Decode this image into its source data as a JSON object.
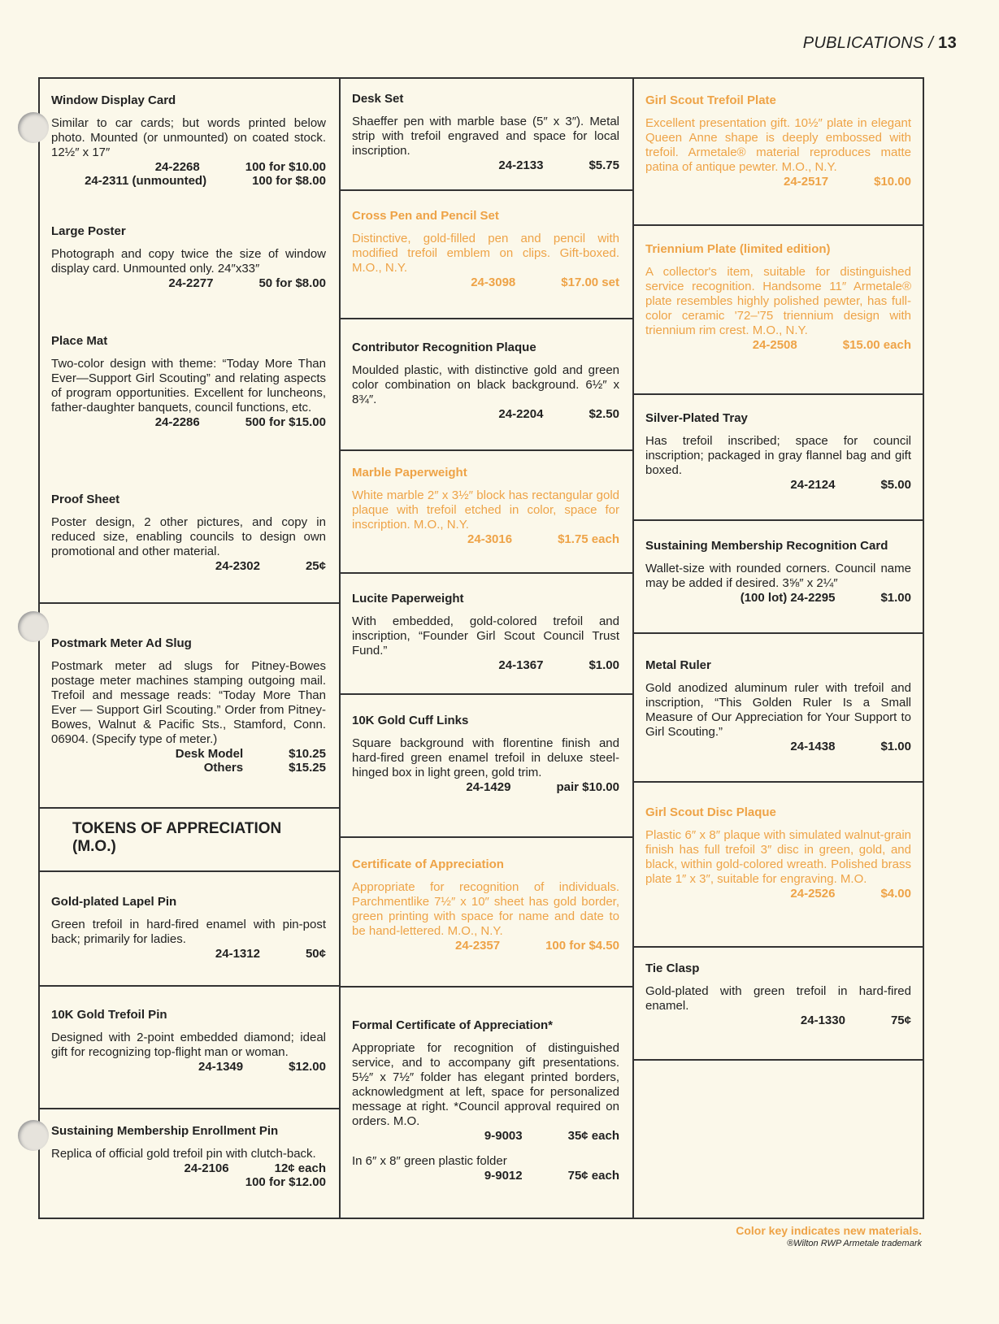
{
  "header": {
    "section": "PUBLICATIONS /",
    "page": "13"
  },
  "colors": {
    "new_material": "#eea347",
    "text": "#222222",
    "paper": "#fbf8ea"
  },
  "columns": [
    {
      "cells": [
        {
          "items": [
            {
              "title": "Window Display Card",
              "desc": "Similar to car cards; but words printed below photo. Mounted (or unmounted) on coated stock. 12½″ x 17″",
              "prices": [
                {
                  "code": "24-2268",
                  "price": "100 for $10.00"
                },
                {
                  "code": "24-2311 (unmounted)",
                  "price": "100 for $8.00"
                }
              ]
            },
            {
              "title": "Large Poster",
              "desc": "Photograph and copy twice the size of window display card. Unmounted only. 24″x33″",
              "prices": [
                {
                  "code": "24-2277",
                  "price": "50 for $8.00"
                }
              ]
            },
            {
              "title": "Place Mat",
              "desc": "Two-color design with theme: “Today More Than Ever—Support Girl Scouting” and relating aspects of program opportunities. Excellent for luncheons, father-daughter banquets, council functions, etc.",
              "prices": [
                {
                  "code": "24-2286",
                  "price": "500 for $15.00"
                }
              ]
            },
            {
              "title": "Proof Sheet",
              "desc": "Poster design, 2 other pictures, and copy in reduced size, enabling councils to design own promotional and other material.",
              "prices": [
                {
                  "code": "24-2302",
                  "price": "25¢"
                }
              ]
            }
          ]
        },
        {
          "items": [
            {
              "title": "Postmark Meter Ad Slug",
              "desc": "Postmark meter ad slugs for Pitney-Bowes postage meter machines stamping outgoing mail. Trefoil and message reads: “Today More Than Ever — Support Girl Scouting.” Order from Pitney-Bowes, Walnut & Pacific Sts., Stamford, Conn. 06904. (Specify type of meter.)",
              "prices": [
                {
                  "code": "Desk Model",
                  "price": "$10.25"
                },
                {
                  "code": "Others",
                  "price": "$15.25"
                }
              ]
            }
          ]
        },
        {
          "heading": "TOKENS OF APPRECIATION (M.O.)"
        },
        {
          "items": [
            {
              "title": "Gold-plated Lapel Pin",
              "desc": "Green trefoil in hard-fired enamel with pin-post back; primarily for ladies.",
              "prices": [
                {
                  "code": "24-1312",
                  "price": "50¢"
                }
              ]
            }
          ]
        },
        {
          "items": [
            {
              "title": "10K Gold Trefoil Pin",
              "desc": "Designed with 2-point embedded diamond; ideal gift for recognizing top-flight man or woman.",
              "prices": [
                {
                  "code": "24-1349",
                  "price": "$12.00"
                }
              ]
            }
          ]
        },
        {
          "items": [
            {
              "title": "Sustaining Membership Enrollment Pin",
              "desc": "Replica of official gold trefoil pin with clutch-back.",
              "prices": [
                {
                  "code": "24-2106",
                  "price": "12¢ each"
                },
                {
                  "code": "",
                  "price": "100 for $12.00"
                }
              ]
            }
          ]
        }
      ]
    },
    {
      "cells": [
        {
          "items": [
            {
              "title": "Desk Set",
              "desc": "Shaeffer pen with marble base (5″ x 3″). Metal strip with trefoil engraved and space for local inscription.",
              "prices": [
                {
                  "code": "24-2133",
                  "price": "$5.75"
                }
              ]
            }
          ]
        },
        {
          "items": [
            {
              "title": "Cross Pen and Pencil Set",
              "new": true,
              "desc": "Distinctive, gold-filled pen and pencil with modified trefoil emblem on clips. Gift-boxed. M.O., N.Y.",
              "prices": [
                {
                  "code": "24-3098",
                  "price": "$17.00 set"
                }
              ]
            }
          ]
        },
        {
          "items": [
            {
              "title": "Contributor Recognition Plaque",
              "desc": "Moulded plastic, with distinctive gold and green color combination on black background. 6½″ x 8¾″.",
              "prices": [
                {
                  "code": "24-2204",
                  "price": "$2.50"
                }
              ]
            }
          ]
        },
        {
          "items": [
            {
              "title": "Marble Paperweight",
              "new": true,
              "desc": "White marble 2″ x 3½″ block has rectangular gold plaque with trefoil etched in color, space for inscription. M.O., N.Y.",
              "prices": [
                {
                  "code": "24-3016",
                  "price": "$1.75 each"
                }
              ]
            }
          ]
        },
        {
          "items": [
            {
              "title": "Lucite Paperweight",
              "desc": "With embedded, gold-colored trefoil and inscription, “Founder Girl Scout Council Trust Fund.”",
              "prices": [
                {
                  "code": "24-1367",
                  "price": "$1.00"
                }
              ]
            }
          ]
        },
        {
          "items": [
            {
              "title": "10K Gold Cuff Links",
              "desc": "Square background with florentine finish and hard-fired green enamel trefoil in deluxe steel-hinged box in light green, gold trim.",
              "prices": [
                {
                  "code": "24-1429",
                  "price": "pair $10.00"
                }
              ]
            }
          ]
        },
        {
          "items": [
            {
              "title": "Certificate of Appreciation",
              "new": true,
              "desc": "Appropriate for recognition of individuals. Parchmentlike 7½″ x 10″ sheet has gold border, green printing with space for name and date to be hand-lettered. M.O., N.Y.",
              "prices": [
                {
                  "code": "24-2357",
                  "price": "100 for $4.50"
                }
              ]
            }
          ]
        },
        {
          "items": [
            {
              "title": "Formal Certificate of Appreciation*",
              "desc": "Appropriate for recognition of distinguished service, and to accompany gift presentations. 5½″ x 7½″ folder has elegant printed borders, acknowledgment at left, space for personalized message at right. *Council approval required on orders. M.O.",
              "prices": [
                {
                  "code": "9-9003",
                  "price": "35¢ each"
                }
              ],
              "desc2": "In 6″ x 8″ green plastic folder",
              "prices2": [
                {
                  "code": "9-9012",
                  "price": "75¢ each"
                }
              ]
            }
          ]
        }
      ]
    },
    {
      "cells": [
        {
          "items": [
            {
              "title": "Girl Scout Trefoil Plate",
              "new": true,
              "desc": "Excellent presentation gift. 10½″ plate in elegant Queen Anne shape is deeply embossed with trefoil. Armetale® material reproduces matte patina of antique pewter. M.O., N.Y.",
              "prices": [
                {
                  "code": "24-2517",
                  "price": "$10.00"
                }
              ]
            }
          ]
        },
        {
          "items": [
            {
              "title": "Triennium Plate (limited edition)",
              "new": true,
              "desc": "A collector's item, suitable for distinguished service recognition. Handsome 11″ Armetale® plate resembles highly polished pewter, has full-color ceramic '72–'75 triennium design with triennium rim crest. M.O., N.Y.",
              "prices": [
                {
                  "code": "24-2508",
                  "price": "$15.00 each"
                }
              ]
            }
          ]
        },
        {
          "items": [
            {
              "title": "Silver-Plated Tray",
              "desc": "Has trefoil inscribed; space for council inscription; packaged in gray flannel bag and gift boxed.",
              "prices": [
                {
                  "code": "24-2124",
                  "price": "$5.00"
                }
              ]
            }
          ]
        },
        {
          "items": [
            {
              "title": "Sustaining Membership Recognition Card",
              "desc": "Wallet-size with rounded corners. Council name may be added if desired. 3⅝″ x 2¼″",
              "prices": [
                {
                  "code": "(100 lot) 24-2295",
                  "price": "$1.00"
                }
              ]
            }
          ]
        },
        {
          "items": [
            {
              "title": "Metal Ruler",
              "desc": "Gold anodized aluminum ruler with trefoil and inscription, “This Golden Ruler Is a Small Measure of Our Appreciation for Your Support to Girl Scouting.”",
              "prices": [
                {
                  "code": "24-1438",
                  "price": "$1.00"
                }
              ]
            }
          ]
        },
        {
          "items": [
            {
              "title": "Girl Scout Disc Plaque",
              "new": true,
              "desc": "Plastic 6″ x 8″ plaque with simulated walnut-grain finish has full trefoil 3″ disc in green, gold, and black, within gold-colored wreath. Polished brass plate 1″ x 3″, suitable for engraving. M.O.",
              "prices": [
                {
                  "code": "24-2526",
                  "price": "$4.00"
                }
              ]
            }
          ]
        },
        {
          "items": [
            {
              "title": "Tie Clasp",
              "desc": "Gold-plated with green trefoil in hard-fired enamel.",
              "prices": [
                {
                  "code": "24-1330",
                  "price": "75¢"
                }
              ]
            }
          ]
        },
        {
          "items": []
        }
      ]
    }
  ],
  "footer": {
    "color_key": "Color key indicates new materials.",
    "trademark": "®Wilton RWP Armetale trademark"
  }
}
